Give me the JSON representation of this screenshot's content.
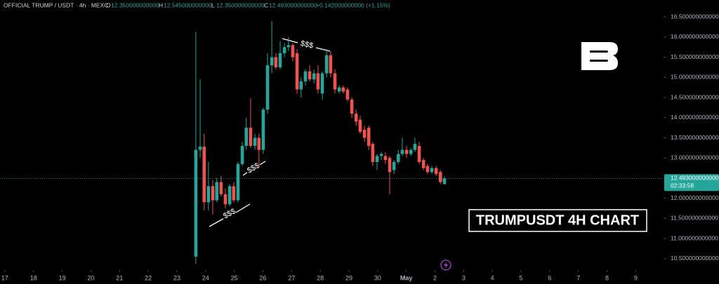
{
  "legend": {
    "symbol": "OFFICIAL TRUMP / USDT · 4h · MEXC",
    "items": [
      {
        "key": "O",
        "value": "12.350000000000"
      },
      {
        "key": "H",
        "value": "12.545000000000"
      },
      {
        "key": "L",
        "value": "12.350000000000"
      },
      {
        "key": "C",
        "value": "12.493000000000"
      }
    ],
    "change": "+0.142000000000 (+1.15%)"
  },
  "chart_data": {
    "type": "candlestick",
    "up_color": "#26a69a",
    "down_color": "#ef5350",
    "x": [
      23.66,
      23.81,
      23.95,
      24.1,
      24.25,
      24.39,
      24.54,
      24.69,
      24.84,
      24.98,
      25.13,
      25.28,
      25.42,
      25.57,
      25.72,
      25.86,
      26.01,
      26.16,
      26.31,
      26.45,
      26.6,
      26.75,
      26.89,
      27.04,
      27.19,
      27.33,
      27.48,
      27.63,
      27.78,
      27.92,
      28.07,
      28.22,
      28.36,
      28.51,
      28.66,
      28.8,
      28.95,
      29.1,
      29.25,
      29.39,
      29.54,
      29.69,
      29.83,
      29.98,
      30.13,
      30.27,
      30.42,
      30.57,
      30.72,
      30.86,
      31.01,
      31.16,
      31.3,
      31.45,
      31.6,
      31.74,
      31.89,
      32.04,
      32.19,
      32.33
    ],
    "open": [
      10.55,
      13.2,
      13.28,
      11.9,
      12.3,
      11.95,
      12.4,
      12.1,
      11.85,
      12.3,
      11.95,
      12.85,
      13.3,
      13.75,
      13.3,
      13.5,
      13.2,
      14.2,
      15.3,
      15.5,
      15.25,
      15.6,
      15.75,
      15.8,
      15.6,
      14.7,
      14.9,
      15.15,
      14.95,
      15.1,
      14.6,
      15.1,
      15.55,
      15.1,
      14.65,
      14.75,
      14.7,
      14.45,
      14.1,
      13.95,
      13.7,
      13.75,
      13.35,
      12.9,
      13.05,
      13.05,
      13.0,
      12.7,
      12.9,
      13.1,
      13.2,
      13.1,
      13.2,
      13.3,
      12.95,
      12.8,
      12.65,
      12.75,
      12.65,
      12.35
    ],
    "high": [
      16.13,
      14.95,
      13.6,
      12.9,
      12.45,
      12.5,
      12.55,
      12.25,
      12.35,
      12.4,
      12.9,
      13.4,
      14.0,
      14.48,
      13.6,
      13.6,
      14.25,
      15.6,
      16.4,
      15.6,
      15.9,
      15.85,
      16.0,
      15.85,
      15.7,
      15.0,
      15.2,
      15.3,
      15.2,
      15.3,
      15.15,
      15.7,
      15.65,
      15.2,
      14.8,
      14.8,
      14.75,
      14.5,
      14.2,
      14.05,
      13.8,
      13.8,
      13.4,
      13.1,
      13.15,
      13.15,
      13.05,
      12.95,
      13.2,
      13.5,
      13.3,
      13.25,
      13.5,
      13.4,
      13.0,
      12.85,
      12.8,
      12.8,
      12.7,
      12.545
    ],
    "low": [
      10.37,
      13.0,
      11.7,
      11.7,
      11.6,
      11.9,
      12.05,
      11.75,
      11.8,
      11.9,
      11.9,
      12.8,
      13.2,
      13.25,
      13.2,
      12.8,
      13.1,
      14.1,
      15.1,
      15.2,
      15.2,
      15.5,
      15.65,
      15.4,
      14.6,
      14.5,
      14.8,
      14.9,
      14.85,
      14.6,
      14.45,
      15.0,
      15.0,
      14.6,
      14.6,
      14.6,
      14.4,
      14.0,
      13.8,
      13.6,
      13.4,
      13.2,
      12.8,
      12.7,
      12.95,
      12.85,
      12.1,
      12.6,
      12.85,
      13.05,
      13.0,
      13.05,
      13.15,
      12.85,
      12.7,
      12.6,
      12.6,
      12.55,
      12.35,
      12.35
    ],
    "close": [
      13.2,
      13.28,
      11.9,
      12.3,
      11.95,
      12.4,
      12.1,
      11.85,
      12.3,
      11.95,
      12.85,
      13.3,
      13.75,
      13.3,
      13.5,
      13.2,
      14.2,
      15.3,
      15.5,
      15.25,
      15.6,
      15.75,
      15.8,
      15.5,
      14.7,
      14.9,
      15.15,
      14.95,
      15.1,
      14.7,
      15.1,
      15.55,
      15.1,
      14.7,
      14.75,
      14.65,
      14.45,
      14.1,
      13.9,
      13.65,
      13.5,
      13.3,
      12.9,
      13.05,
      13.1,
      12.95,
      12.65,
      12.9,
      13.1,
      13.2,
      13.1,
      13.2,
      13.35,
      12.9,
      12.75,
      12.65,
      12.75,
      12.6,
      12.4,
      12.493
    ],
    "xlim": [
      16.83,
      39.97
    ],
    "xticks": [
      17,
      18,
      19,
      20,
      21,
      22,
      23,
      24,
      25,
      26,
      27,
      28,
      29,
      30,
      {
        "value": 31,
        "label": "May"
      },
      {
        "value": 32,
        "label": "2"
      },
      {
        "value": 33,
        "label": "3"
      },
      {
        "value": 34,
        "label": "4"
      },
      {
        "value": 35,
        "label": "5"
      },
      {
        "value": 36,
        "label": "6"
      },
      {
        "value": 37,
        "label": "7"
      },
      {
        "value": 38,
        "label": "8"
      },
      {
        "value": 39,
        "label": "9"
      }
    ],
    "ylim": [
      10.22,
      16.92
    ],
    "yticks": [
      {
        "value": 16.5,
        "label": "16.500000000000"
      },
      {
        "value": 16,
        "label": "16.000000000000"
      },
      {
        "value": 15.5,
        "label": "15.500000000000"
      },
      {
        "value": 15,
        "label": "15.000000000000"
      },
      {
        "value": 14.5,
        "label": "14.500000000000"
      },
      {
        "value": 14,
        "label": "14.000000000000"
      },
      {
        "value": 13.5,
        "label": "13.500000000000"
      },
      {
        "value": 13,
        "label": "13.000000000000"
      },
      {
        "value": 12,
        "label": "12.000000000000"
      },
      {
        "value": 11.5,
        "label": "11.500000000000"
      },
      {
        "value": 11,
        "label": "11.000000000000"
      },
      {
        "value": 10.5,
        "label": "10.500000000000"
      }
    ],
    "last_price": {
      "value": 12.493,
      "label": "12.493000000000",
      "countdown": "02:33:58"
    },
    "annotations": [
      "$$$",
      "$$$",
      "$$$"
    ],
    "label": "TRUMPUSDT 4H CHART"
  }
}
